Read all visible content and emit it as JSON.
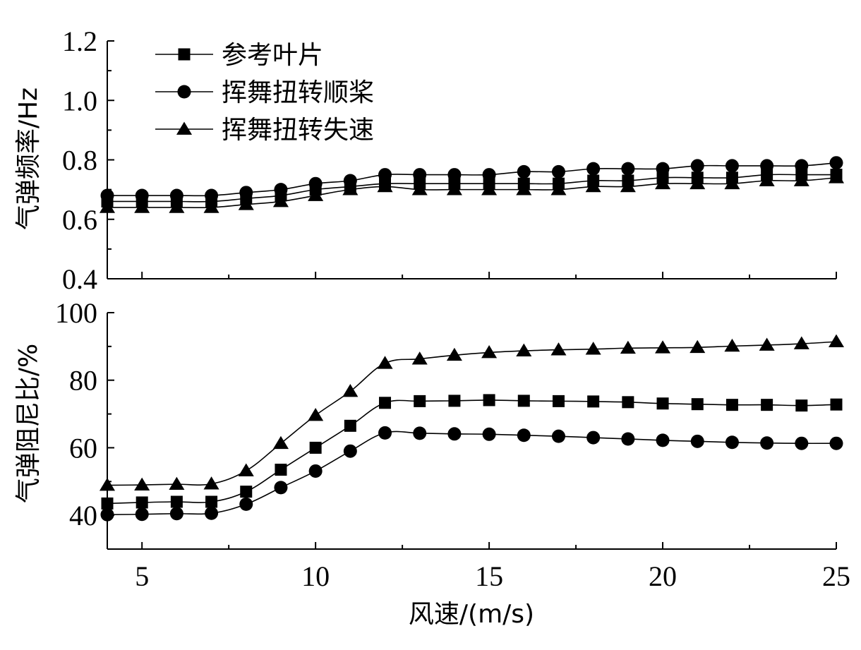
{
  "chart_data": [
    {
      "type": "line",
      "id": "top",
      "xlabel": "",
      "ylabel": "气弹频率/Hz",
      "xlim": [
        4,
        25
      ],
      "ylim": [
        0.4,
        1.2
      ],
      "yticks": [
        0.4,
        0.6,
        0.8,
        1.0,
        1.2
      ],
      "ytick_labels": [
        "0.4",
        "0.6",
        "0.8",
        "1.0",
        "1.2"
      ],
      "xticks": [
        5,
        10,
        15,
        20,
        25
      ],
      "legend": "top-left",
      "x": [
        4,
        5,
        6,
        7,
        8,
        9,
        10,
        11,
        12,
        13,
        14,
        15,
        16,
        17,
        18,
        19,
        20,
        21,
        22,
        23,
        24,
        25
      ],
      "series": [
        {
          "name": "参考叶片",
          "marker": "square",
          "values": [
            0.66,
            0.66,
            0.66,
            0.66,
            0.67,
            0.68,
            0.7,
            0.71,
            0.72,
            0.72,
            0.72,
            0.72,
            0.72,
            0.72,
            0.73,
            0.73,
            0.74,
            0.74,
            0.74,
            0.75,
            0.75,
            0.75
          ]
        },
        {
          "name": "挥舞扭转顺桨",
          "marker": "circle",
          "values": [
            0.68,
            0.68,
            0.68,
            0.68,
            0.69,
            0.7,
            0.72,
            0.73,
            0.75,
            0.75,
            0.75,
            0.75,
            0.76,
            0.76,
            0.77,
            0.77,
            0.77,
            0.78,
            0.78,
            0.78,
            0.78,
            0.79
          ]
        },
        {
          "name": "挥舞扭转失速",
          "marker": "triangle",
          "values": [
            0.64,
            0.64,
            0.64,
            0.64,
            0.65,
            0.66,
            0.68,
            0.7,
            0.71,
            0.7,
            0.7,
            0.7,
            0.7,
            0.7,
            0.71,
            0.71,
            0.72,
            0.72,
            0.72,
            0.73,
            0.73,
            0.74
          ]
        }
      ]
    },
    {
      "type": "line",
      "id": "bottom",
      "xlabel": "风速/(m/s)",
      "ylabel": "气弹阻尼比/%",
      "xlim": [
        4,
        25
      ],
      "ylim": [
        30,
        100
      ],
      "yticks": [
        40,
        60,
        80,
        100
      ],
      "ytick_labels": [
        "40",
        "60",
        "80",
        "100"
      ],
      "xticks": [
        5,
        10,
        15,
        20,
        25
      ],
      "xtick_labels": [
        "5",
        "10",
        "15",
        "20",
        "25"
      ],
      "x": [
        4,
        5,
        6,
        7,
        8,
        9,
        10,
        11,
        12,
        13,
        14,
        15,
        16,
        17,
        18,
        19,
        20,
        21,
        22,
        23,
        24,
        25
      ],
      "series": [
        {
          "name": "参考叶片",
          "marker": "square",
          "values": [
            43.5,
            43.8,
            44.0,
            44.0,
            47.0,
            53.5,
            60.0,
            66.5,
            73.3,
            73.8,
            73.9,
            74.1,
            73.9,
            73.8,
            73.7,
            73.5,
            73.1,
            72.9,
            72.7,
            72.7,
            72.5,
            72.8
          ]
        },
        {
          "name": "挥舞扭转顺桨",
          "marker": "circle",
          "values": [
            40.2,
            40.3,
            40.5,
            40.6,
            43.3,
            48.2,
            53.1,
            59.0,
            64.4,
            64.3,
            64.1,
            64.0,
            63.7,
            63.4,
            63.0,
            62.6,
            62.2,
            61.9,
            61.6,
            61.4,
            61.3,
            61.3
          ]
        },
        {
          "name": "挥舞扭转失速",
          "marker": "triangle",
          "values": [
            48.9,
            49.0,
            49.2,
            49.3,
            53.2,
            61.3,
            69.6,
            76.7,
            85.0,
            86.3,
            87.4,
            88.2,
            88.7,
            89.0,
            89.2,
            89.5,
            89.6,
            89.7,
            90.1,
            90.4,
            90.8,
            91.4
          ]
        }
      ]
    }
  ]
}
